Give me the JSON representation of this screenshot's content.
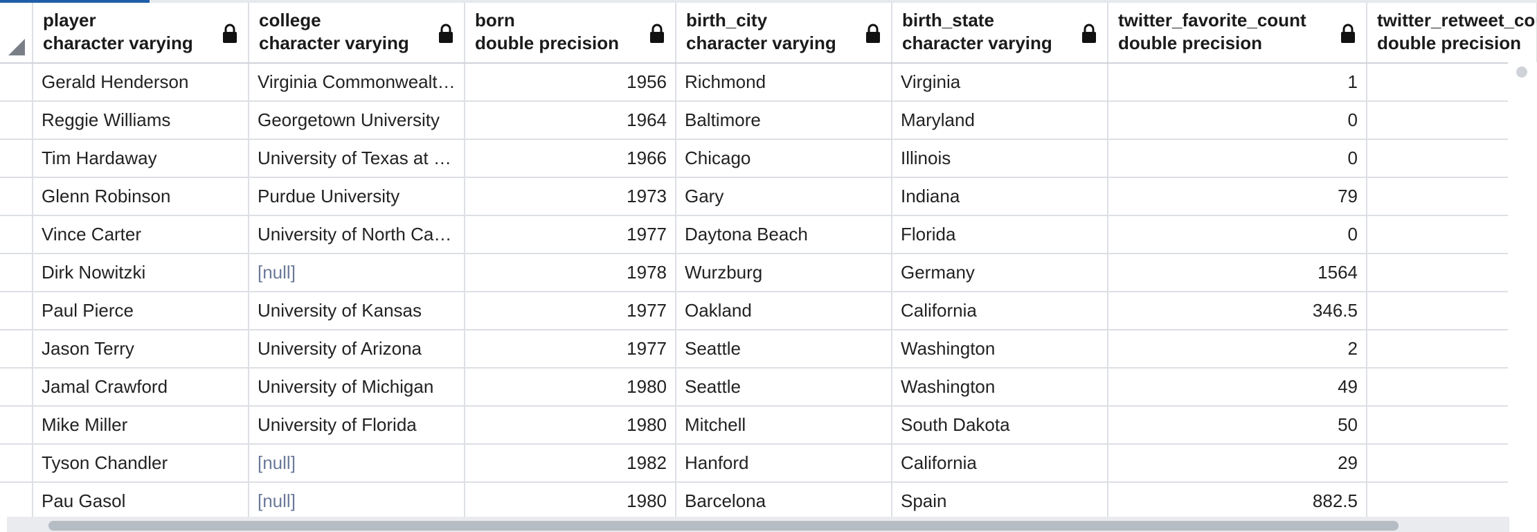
{
  "columns": [
    {
      "name": "player",
      "type": "character varying"
    },
    {
      "name": "college",
      "type": "character varying"
    },
    {
      "name": "born",
      "type": "double precision"
    },
    {
      "name": "birth_city",
      "type": "character varying"
    },
    {
      "name": "birth_state",
      "type": "character varying"
    },
    {
      "name": "twitter_favorite_count",
      "type": "double precision"
    },
    {
      "name": "twitter_retweet_cou",
      "type": "double precision"
    }
  ],
  "rows": [
    {
      "player": "Gerald Henderson",
      "college": "Virginia Commonwealt…",
      "born": "1956",
      "birth_city": "Richmond",
      "birth_state": "Virginia",
      "fav": "1",
      "rt": ""
    },
    {
      "player": "Reggie Williams",
      "college": "Georgetown University",
      "born": "1964",
      "birth_city": "Baltimore",
      "birth_state": "Maryland",
      "fav": "0",
      "rt": ""
    },
    {
      "player": "Tim Hardaway",
      "college": "University of Texas at E…",
      "born": "1966",
      "birth_city": "Chicago",
      "birth_state": "Illinois",
      "fav": "0",
      "rt": ""
    },
    {
      "player": "Glenn Robinson",
      "college": "Purdue University",
      "born": "1973",
      "birth_city": "Gary",
      "birth_state": "Indiana",
      "fav": "79",
      "rt": ""
    },
    {
      "player": "Vince Carter",
      "college": "University of North Car…",
      "born": "1977",
      "birth_city": "Daytona Beach",
      "birth_state": "Florida",
      "fav": "0",
      "rt": ""
    },
    {
      "player": "Dirk Nowitzki",
      "college": "[null]",
      "born": "1978",
      "birth_city": "Wurzburg",
      "birth_state": "Germany",
      "fav": "1564",
      "rt": ""
    },
    {
      "player": "Paul Pierce",
      "college": "University of Kansas",
      "born": "1977",
      "birth_city": "Oakland",
      "birth_state": "California",
      "fav": "346.5",
      "rt": ""
    },
    {
      "player": "Jason Terry",
      "college": "University of Arizona",
      "born": "1977",
      "birth_city": "Seattle",
      "birth_state": "Washington",
      "fav": "2",
      "rt": ""
    },
    {
      "player": "Jamal Crawford",
      "college": "University of Michigan",
      "born": "1980",
      "birth_city": "Seattle",
      "birth_state": "Washington",
      "fav": "49",
      "rt": ""
    },
    {
      "player": "Mike Miller",
      "college": "University of Florida",
      "born": "1980",
      "birth_city": "Mitchell",
      "birth_state": "South Dakota",
      "fav": "50",
      "rt": ""
    },
    {
      "player": "Tyson Chandler",
      "college": "[null]",
      "born": "1982",
      "birth_city": "Hanford",
      "birth_state": "California",
      "fav": "29",
      "rt": ""
    },
    {
      "player": "Pau Gasol",
      "college": "[null]",
      "born": "1980",
      "birth_city": "Barcelona",
      "birth_state": "Spain",
      "fav": "882.5",
      "rt": ""
    }
  ],
  "icons": {
    "lock": "lock-icon",
    "corner": "select-all-triangle-icon"
  },
  "colors": {
    "null_text": "#6b7a99",
    "grid_line": "#dcdfe4",
    "accent": "#1f5ea8"
  }
}
